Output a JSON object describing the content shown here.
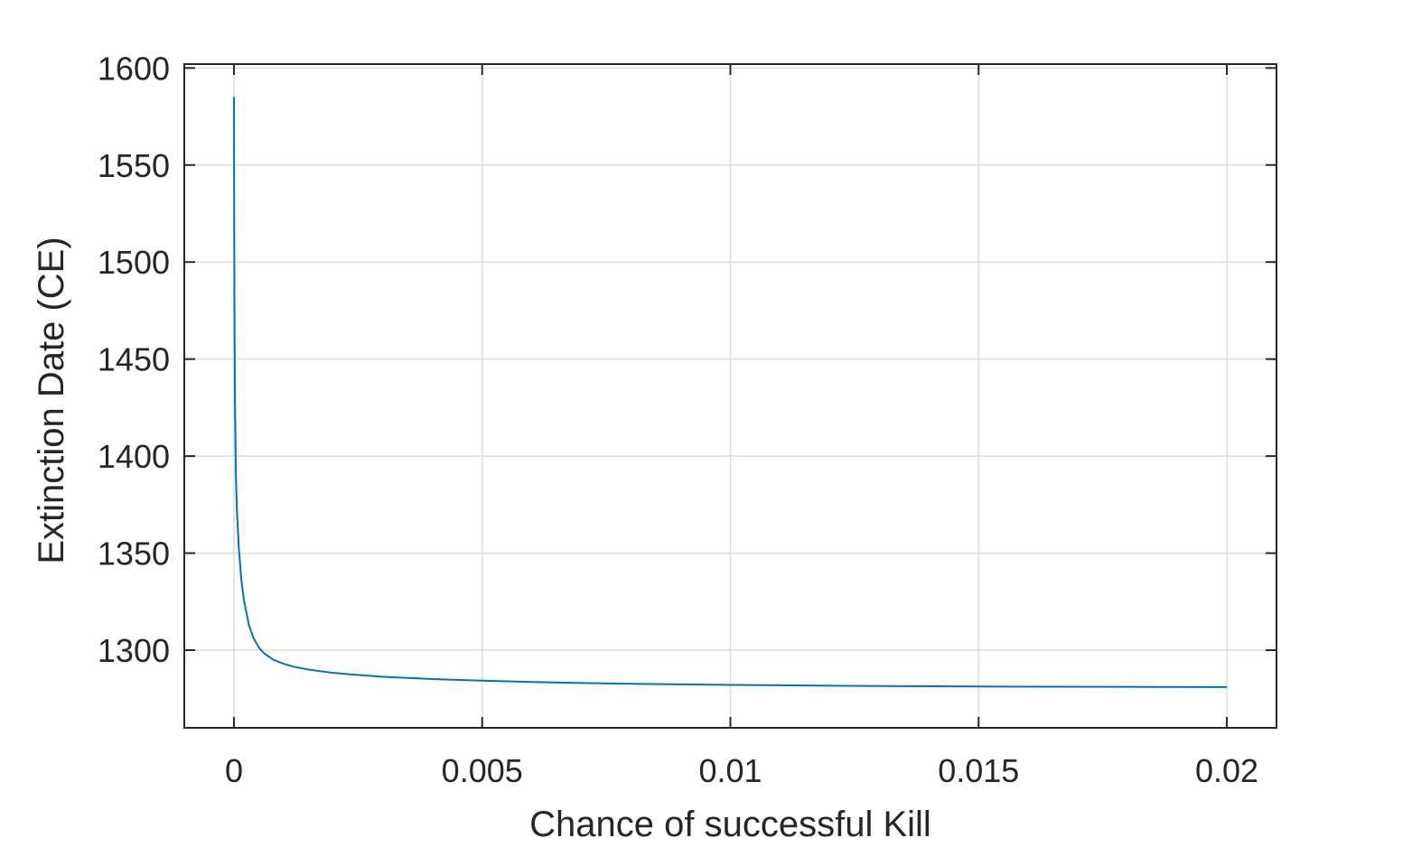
{
  "chart_data": {
    "type": "line",
    "title": "",
    "xlabel": "Chance of successful Kill",
    "ylabel": "Extinction Date (CE)",
    "xlim": [
      -0.001,
      0.021
    ],
    "ylim": [
      1260,
      1602
    ],
    "xticks": [
      0,
      0.005,
      0.01,
      0.015,
      0.02
    ],
    "xtick_labels": [
      "0",
      "0.005",
      "0.01",
      "0.015",
      "0.02"
    ],
    "yticks": [
      1300,
      1350,
      1400,
      1450,
      1500,
      1550,
      1600
    ],
    "ytick_labels": [
      "1300",
      "1350",
      "1400",
      "1450",
      "1500",
      "1550",
      "1600"
    ],
    "grid": true,
    "line_color": "#0072BD",
    "series": [
      {
        "x": [
          0.0,
          1e-05,
          2e-05,
          4e-05,
          6e-05,
          0.0001,
          0.00015,
          0.0002,
          0.0003,
          0.0004,
          0.0005,
          0.0006,
          0.0008,
          0.001,
          0.0012,
          0.0015,
          0.002,
          0.0025,
          0.003,
          0.004,
          0.005,
          0.006,
          0.007,
          0.008,
          0.01,
          0.012,
          0.014,
          0.015,
          0.016,
          0.018,
          0.02
        ],
        "y": [
          1585,
          1480,
          1430,
          1390,
          1372,
          1352,
          1336,
          1326,
          1313,
          1306,
          1301.5,
          1298.5,
          1295,
          1293,
          1291.5,
          1290,
          1288.3,
          1287.2,
          1286.3,
          1285.1,
          1284.3,
          1283.6,
          1283.1,
          1282.7,
          1282.1,
          1281.7,
          1281.4,
          1281.3,
          1281.2,
          1281.1,
          1281
        ]
      }
    ]
  }
}
